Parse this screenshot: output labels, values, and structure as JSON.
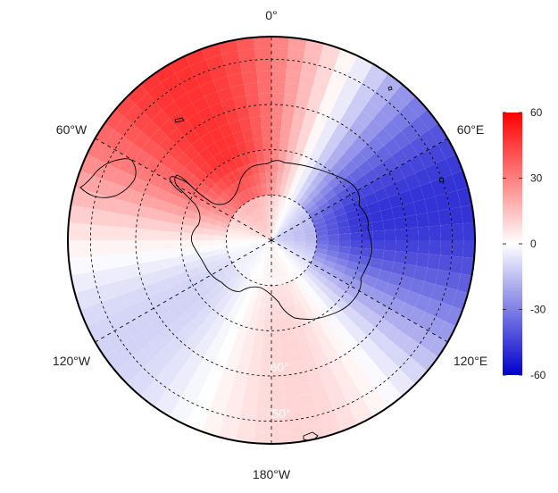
{
  "map": {
    "projection": "south-polar-stereographic",
    "longitude_labels": [
      {
        "text": "0°",
        "lon": 0
      },
      {
        "text": "60°E",
        "lon": 60
      },
      {
        "text": "120°E",
        "lon": 120
      },
      {
        "text": "180°W",
        "lon": 180
      },
      {
        "text": "120°W",
        "lon": -120
      },
      {
        "text": "60°W",
        "lon": -60
      }
    ],
    "latitude_labels": [
      {
        "text": "80°",
        "lat": -80
      },
      {
        "text": "60°",
        "lat": -60
      },
      {
        "text": "50°",
        "lat": -50
      }
    ],
    "graticule": {
      "latitudes": [
        -80,
        -70,
        -60,
        -50
      ],
      "meridians_deg": [
        0,
        60,
        120,
        180,
        240,
        300
      ],
      "style": "dashed"
    },
    "field_pattern": {
      "description": "wave-2 pattern: negative anomaly over East Antarctica (60E–150E), positive over Pacific/Atlantic sectors",
      "min_value": -60,
      "max_value": 60
    }
  },
  "colorbar": {
    "ticks": [
      "60",
      "30",
      "0",
      "-30",
      "-60"
    ],
    "tick_values": [
      60,
      30,
      0,
      -30,
      -60
    ],
    "colors": {
      "high": "#ff0000",
      "mid": "#ffffff",
      "low": "#0000cc"
    },
    "placement": "right"
  }
}
